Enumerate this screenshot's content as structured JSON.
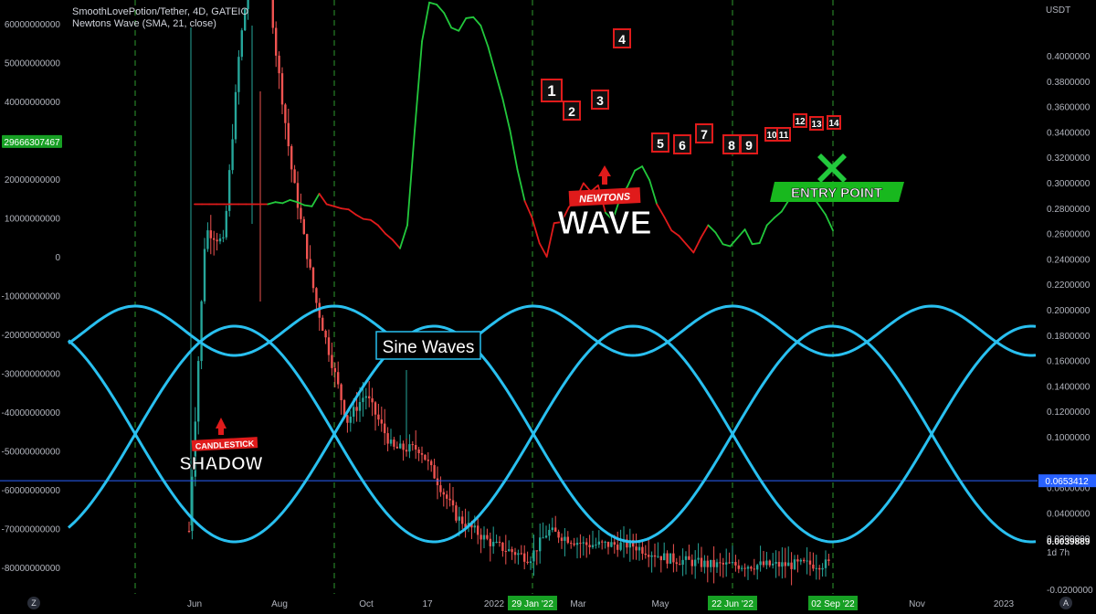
{
  "header": {
    "symbol_line": "SmoothLovePotion/Tether, 4D, GATEIO",
    "indicator_line": "Newtons Wave (SMA, 21, close)"
  },
  "colors": {
    "background": "#000000",
    "up_candle": "#26a69a",
    "down_candle": "#ef5350",
    "wave_up": "#22c83c",
    "wave_down": "#e01b1b",
    "sine": "#29c0f0",
    "price_line": "#2962ff",
    "cycle_lines": "#2e9a2e"
  },
  "chart_data": {
    "type": "line",
    "left_axis": {
      "ticks": [
        60000000000,
        50000000000,
        40000000000,
        30000000000,
        20000000000,
        10000000000,
        0,
        -10000000000,
        -20000000000,
        -30000000000,
        -40000000000,
        -50000000000,
        -60000000000,
        -70000000000,
        -80000000000
      ],
      "tick_labels": [
        "60000000000",
        "50000000000",
        "40000000000",
        "30000000000",
        "20000000000",
        "10000000000",
        "0",
        "-10000000000",
        "-20000000000",
        "-30000000000",
        "-40000000000",
        "-50000000000",
        "-60000000000",
        "-70000000000",
        "-80000000000"
      ],
      "highlight_label": "29666307467",
      "highlight_value": 29666307467
    },
    "right_axis": {
      "unit": "USDT",
      "ticks": [
        0.4,
        0.38,
        0.36,
        0.34,
        0.32,
        0.3,
        0.28,
        0.26,
        0.24,
        0.22,
        0.2,
        0.18,
        0.16,
        0.14,
        0.12,
        0.1,
        0.08,
        0.06,
        0.04,
        0.02,
        0.0,
        -0.02
      ],
      "tick_labels": [
        "0.4000000",
        "0.3800000",
        "0.3600000",
        "0.3400000",
        "0.3200000",
        "0.3000000",
        "0.2800000",
        "0.2600000",
        "0.2400000",
        "0.2200000",
        "0.2000000",
        "0.1800000",
        "0.1600000",
        "0.1400000",
        "0.1200000",
        "0.1000000",
        "",
        "0.0600000",
        "0.0400000",
        "0.0200000",
        "",
        "-0.0200000"
      ],
      "last_price_label": "0.0653412",
      "last_price": 0.0653412,
      "low_label": "0.0039889",
      "countdown_label": "1d 7h"
    },
    "x_axis": {
      "labels": [
        "Jun",
        "Aug",
        "Oct",
        "17",
        "2022",
        "Mar",
        "May",
        "Nov",
        "2023"
      ],
      "highlight_labels": [
        "29 Jan '22",
        "22 Jun '22",
        "02 Sep '22"
      ]
    },
    "newtons_wave": {
      "name": "Newtons Wave (SMA, 21, close)",
      "values": [
        0.05,
        0.05,
        0.05,
        0.05,
        0.05,
        0.05,
        0.05,
        0.05,
        0.05,
        0.05,
        0.05,
        0.052,
        0.051,
        0.054,
        0.052,
        0.049,
        0.048,
        0.06,
        0.05,
        0.048,
        0.046,
        0.045,
        0.04,
        0.036,
        0.035,
        0.03,
        0.022,
        0.016,
        0.008,
        0.03,
        0.12,
        0.205,
        0.242,
        0.24,
        0.232,
        0.218,
        0.215,
        0.227,
        0.228,
        0.22,
        0.2,
        0.175,
        0.15,
        0.12,
        0.083,
        0.053,
        0.037,
        0.013,
        0.0,
        0.032,
        0.033,
        0.047,
        0.055,
        0.07,
        0.062,
        0.068,
        0.042,
        0.035,
        0.056,
        0.067,
        0.082,
        0.086,
        0.073,
        0.05,
        0.038,
        0.025,
        0.02,
        0.012,
        0.004,
        0.018,
        0.03,
        0.023,
        0.012,
        0.01,
        0.018,
        0.026,
        0.012,
        0.013,
        0.03,
        0.037,
        0.043,
        0.054,
        0.066,
        0.063,
        0.06,
        0.05,
        0.04,
        0.025
      ],
      "dir": [
        0,
        0,
        0,
        0,
        0,
        0,
        0,
        0,
        0,
        0,
        0,
        1,
        1,
        1,
        1,
        1,
        1,
        1,
        0,
        0,
        0,
        0,
        0,
        0,
        0,
        0,
        0,
        0,
        0,
        1,
        1,
        1,
        1,
        1,
        1,
        1,
        1,
        1,
        1,
        1,
        1,
        1,
        1,
        1,
        1,
        1,
        0,
        0,
        0,
        0,
        0,
        0,
        0,
        0,
        0,
        0,
        0,
        1,
        1,
        1,
        1,
        1,
        1,
        1,
        0,
        0,
        0,
        0,
        0,
        0,
        0,
        1,
        1,
        1,
        1,
        1,
        1,
        1,
        1,
        1,
        1,
        1,
        1,
        1,
        1,
        1,
        1,
        1
      ]
    },
    "wave_markers": [
      "1",
      "2",
      "3",
      "4",
      "5",
      "6",
      "7",
      "8",
      "9",
      "10",
      "11",
      "12",
      "13",
      "14"
    ],
    "vertical_cycle_lines": 8,
    "annotations": {
      "sine": "Sine Waves",
      "newtons_small": "NEWTONS",
      "newtons_big": "WAVE",
      "candle_small": "CANDLESTICK",
      "candle_big": "SHADOW",
      "entry": "ENTRY POINT"
    }
  },
  "footer": {
    "left_button": "Z",
    "right_button": "A"
  }
}
